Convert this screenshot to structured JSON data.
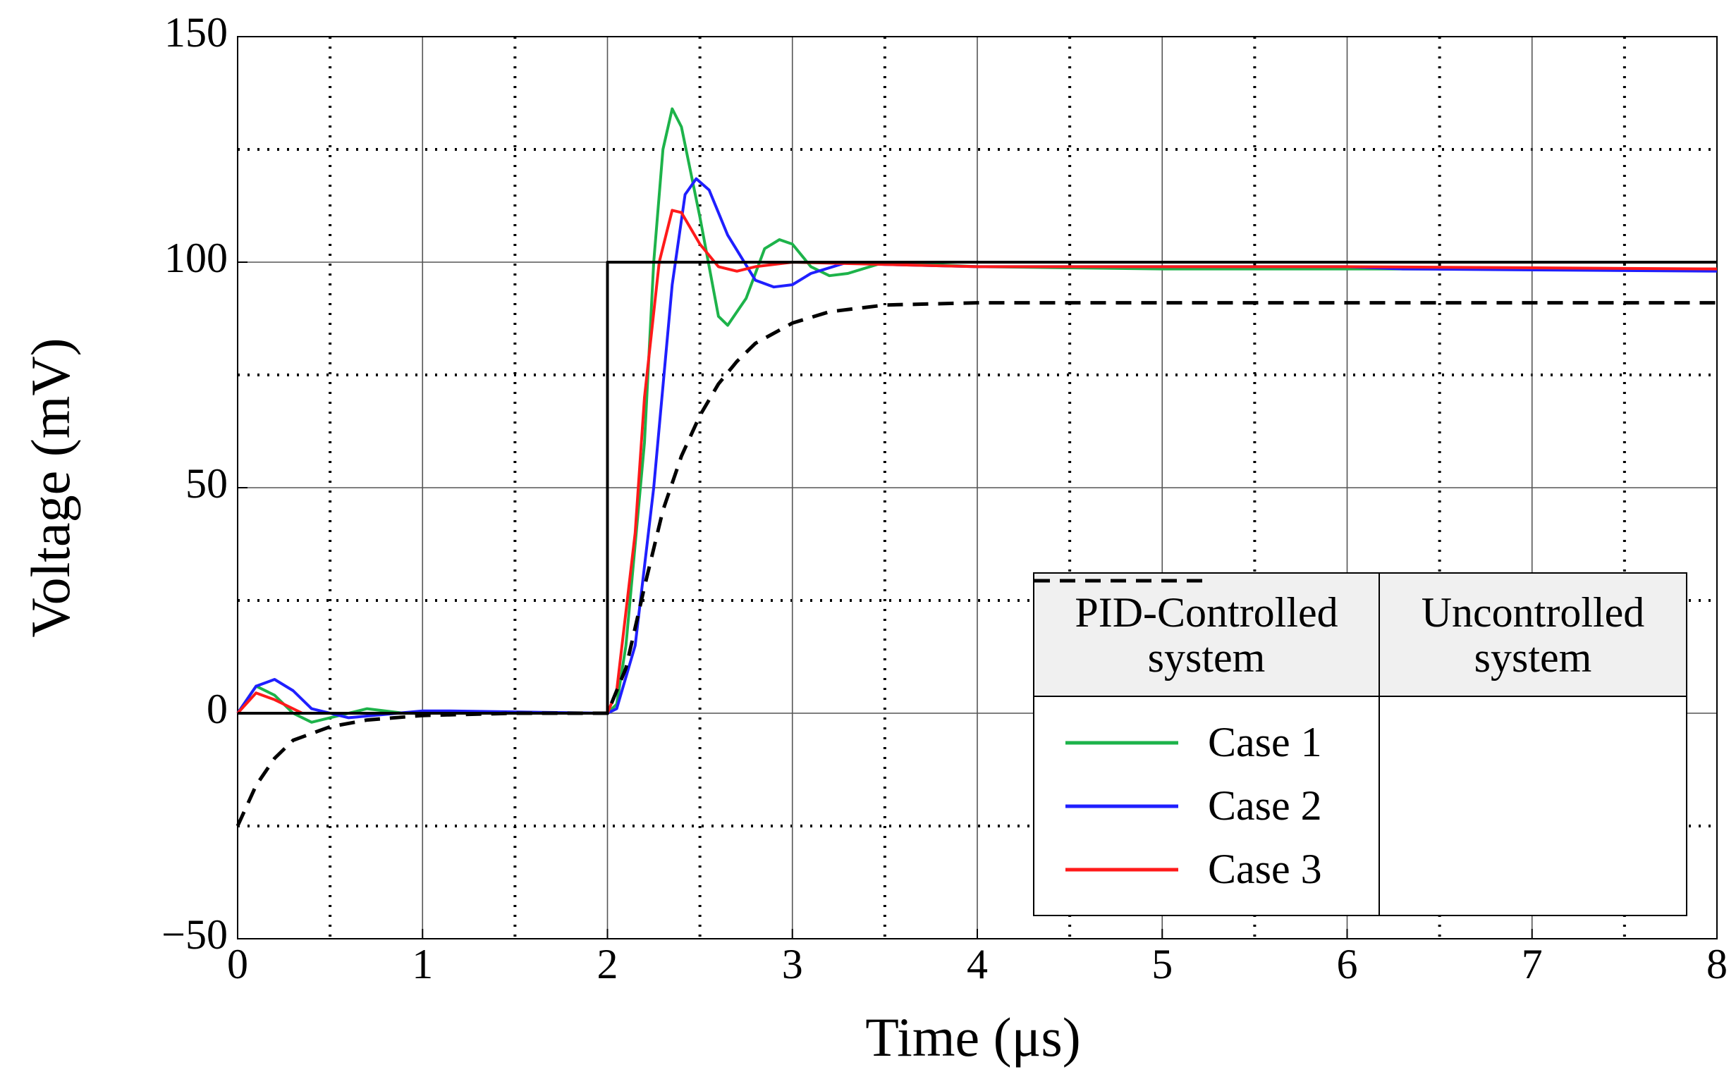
{
  "chart_data": {
    "type": "line",
    "xlabel": "Time (μs)",
    "ylabel": "Voltage (mV)",
    "xlim": [
      0,
      8
    ],
    "xticks": [
      0,
      1,
      2,
      3,
      4,
      5,
      6,
      7,
      8
    ],
    "ylim": [
      -50,
      150
    ],
    "yticks": [
      {
        "value": -50,
        "label": "−50"
      },
      0,
      50,
      100,
      150
    ],
    "xminor": [
      0.5,
      1.5,
      2.5,
      3.5,
      4.5,
      5.5,
      6.5,
      7.5
    ],
    "yminor": [
      -25,
      25,
      75,
      125
    ],
    "grid": true,
    "legend_title": "PID-Controlled system",
    "series": [
      {
        "name": "Case 1",
        "color": "#1db34a",
        "style": "solid",
        "x": [
          0,
          0.1,
          0.2,
          0.3,
          0.4,
          0.5,
          0.7,
          0.9,
          2,
          2.05,
          2.1,
          2.2,
          2.25,
          2.3,
          2.35,
          2.4,
          2.5,
          2.6,
          2.65,
          2.75,
          2.85,
          2.93,
          3.0,
          3.1,
          3.2,
          3.3,
          3.5,
          4,
          5,
          6,
          8
        ],
        "values": [
          0,
          6,
          4,
          0,
          -2,
          -1,
          1,
          0,
          0,
          2,
          15,
          60,
          100,
          125,
          134,
          130,
          110,
          88,
          86,
          92,
          103,
          105,
          104,
          99,
          97,
          97.5,
          100,
          99,
          98.5,
          98.5,
          98.5
        ]
      },
      {
        "name": "Case 2",
        "color": "#1f1fff",
        "style": "solid",
        "x": [
          0,
          0.1,
          0.2,
          0.3,
          0.4,
          0.6,
          1,
          1.15,
          2,
          2.05,
          2.15,
          2.25,
          2.35,
          2.42,
          2.48,
          2.55,
          2.65,
          2.8,
          2.9,
          3.0,
          3.1,
          3.3,
          3.5,
          4,
          6,
          6.3,
          8
        ],
        "values": [
          0,
          6,
          7.5,
          5,
          1,
          -1,
          0.5,
          0.5,
          0,
          1,
          15,
          50,
          95,
          115,
          118.5,
          116,
          106,
          96,
          94.5,
          95,
          97.5,
          100,
          99.5,
          99,
          99,
          98.5,
          98
        ]
      },
      {
        "name": "Case 3",
        "color": "#ff1a1a",
        "style": "solid",
        "x": [
          0,
          0.1,
          0.2,
          0.35,
          0.6,
          2,
          2.05,
          2.15,
          2.2,
          2.28,
          2.35,
          2.4,
          2.5,
          2.6,
          2.7,
          2.8,
          3,
          4,
          6,
          8
        ],
        "values": [
          0,
          4.5,
          3,
          0,
          0,
          0,
          5,
          40,
          70,
          100,
          111.5,
          111,
          104,
          99,
          98,
          99,
          100,
          99,
          99,
          98.5
        ]
      },
      {
        "name": "Uncontrolled system",
        "color": "#000000",
        "style": "dashed",
        "x": [
          0,
          0.1,
          0.2,
          0.3,
          0.5,
          0.7,
          1,
          1.5,
          2,
          2.1,
          2.2,
          2.3,
          2.4,
          2.5,
          2.6,
          2.7,
          2.8,
          3,
          3.2,
          3.5,
          4,
          8
        ],
        "values": [
          -25,
          -16,
          -10,
          -6,
          -3,
          -1.5,
          -0.5,
          0,
          0,
          10,
          28,
          45,
          57,
          66,
          73,
          78,
          82,
          86.5,
          89,
          90.5,
          91,
          91
        ]
      },
      {
        "color": "#000000",
        "style": "solid",
        "x": [
          0,
          2,
          2,
          8
        ],
        "values": [
          0,
          0,
          100,
          100
        ]
      }
    ]
  }
}
